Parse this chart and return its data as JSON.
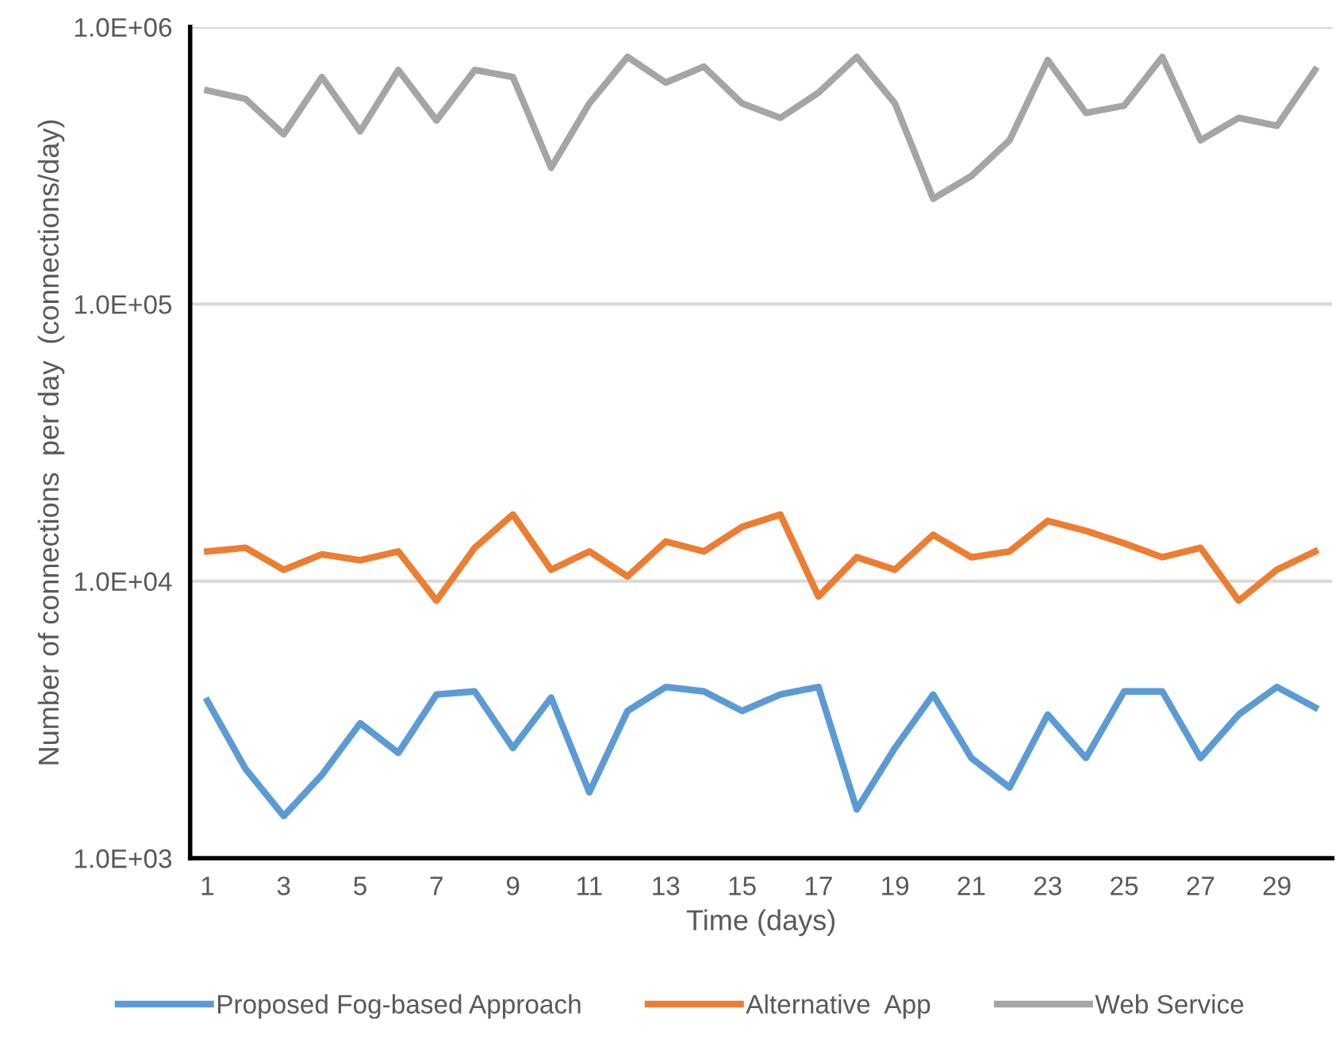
{
  "chart_data": {
    "type": "line",
    "xlabel": "Time (days)",
    "ylabel": "Number of connections  per day  (connections/day)",
    "categories": [
      "1",
      null,
      "3",
      null,
      "5",
      null,
      "7",
      null,
      "9",
      null,
      "11",
      null,
      "13",
      null,
      "15",
      null,
      "17",
      null,
      "19",
      null,
      "21",
      null,
      "23",
      null,
      "25",
      null,
      "27",
      null,
      "29",
      null
    ],
    "series": [
      {
        "name": "Proposed Fog-based Approach",
        "color": "#5b9bd5",
        "values": [
          3700,
          2100,
          1420,
          2000,
          3070,
          2400,
          3900,
          4000,
          2500,
          3800,
          1730,
          3400,
          4150,
          4000,
          3400,
          3900,
          4150,
          1500,
          2500,
          3900,
          2300,
          1800,
          3300,
          2300,
          4000,
          4000,
          2300,
          3300,
          4150,
          3500
        ]
      },
      {
        "name": "Alternative  App",
        "color": "#ed7d31",
        "values": [
          12800,
          13200,
          11000,
          12500,
          11900,
          12800,
          8500,
          13200,
          17400,
          11000,
          12800,
          10400,
          13900,
          12800,
          15700,
          17400,
          8800,
          12200,
          11000,
          14700,
          12200,
          12800,
          16500,
          15200,
          13700,
          12200,
          13200,
          8500,
          11000,
          12800
        ]
      },
      {
        "name": "Web Service",
        "color": "#a5a5a5",
        "values": [
          590000,
          550000,
          410000,
          660000,
          420000,
          700000,
          460000,
          700000,
          660000,
          310000,
          530000,
          780000,
          630000,
          720000,
          530000,
          470000,
          580000,
          780000,
          530000,
          240000,
          290000,
          390000,
          760000,
          490000,
          520000,
          780000,
          390000,
          470000,
          440000,
          700000
        ]
      }
    ],
    "log": true,
    "ylim": [
      1000,
      1000000
    ],
    "yticks": [
      {
        "value": 1000,
        "label": "1.0E+03"
      },
      {
        "value": 10000,
        "label": "1.0E+04"
      },
      {
        "value": 100000,
        "label": "1.0E+05"
      },
      {
        "value": 1000000,
        "label": "1.0E+06"
      }
    ],
    "grid": "y",
    "legend": "bottom",
    "line_style": "solid",
    "marker": "none"
  }
}
